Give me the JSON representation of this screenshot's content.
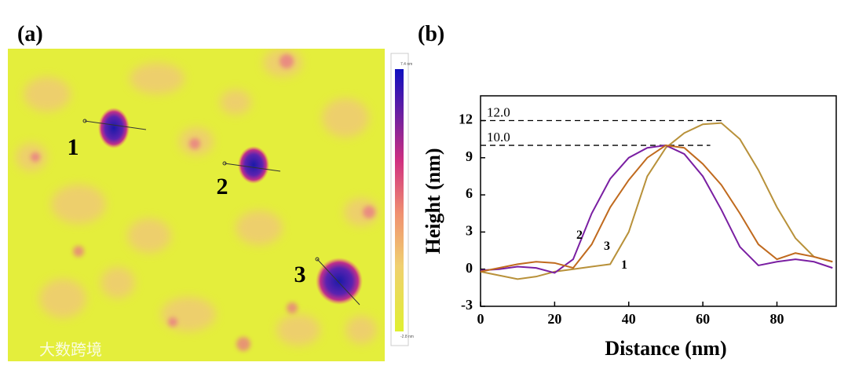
{
  "panel_a": {
    "label": "(a)",
    "particle_labels": [
      "1",
      "2",
      "3"
    ],
    "colorbar_max": "7.4 nm",
    "colorbar_min": "-2.8 nm",
    "watermark": "大数跨境"
  },
  "chart_data": {
    "type": "line",
    "panel_label": "(b)",
    "x_label": "Distance (nm)",
    "y_label": "Height (nm)",
    "x": [
      0,
      5,
      10,
      15,
      20,
      25,
      30,
      35,
      40,
      45,
      50,
      55,
      60,
      65,
      70,
      75,
      80,
      85,
      90,
      95
    ],
    "series": [
      {
        "name": "1",
        "color": "#b8913a",
        "values": [
          -0.2,
          -0.5,
          -0.8,
          -0.6,
          -0.2,
          0.0,
          0.2,
          0.4,
          3.0,
          7.5,
          9.8,
          11.0,
          11.7,
          11.8,
          10.5,
          8.0,
          5.0,
          2.5,
          1.0,
          0.6
        ]
      },
      {
        "name": "2",
        "color": "#7a1fa2",
        "values": [
          -0.1,
          0.0,
          0.2,
          0.1,
          -0.3,
          0.8,
          4.5,
          7.3,
          9.0,
          9.8,
          10.0,
          9.3,
          7.5,
          4.8,
          1.8,
          0.3,
          0.6,
          0.8,
          0.6,
          0.1
        ]
      },
      {
        "name": "3",
        "color": "#c06a1e",
        "values": [
          -0.2,
          0.1,
          0.4,
          0.6,
          0.5,
          0.1,
          2.0,
          5.0,
          7.2,
          9.0,
          10.0,
          9.8,
          8.5,
          6.8,
          4.5,
          2.0,
          0.8,
          1.3,
          1.0,
          0.6
        ]
      }
    ],
    "reference_lines": [
      {
        "value": 12,
        "label": "12.0"
      },
      {
        "value": 10,
        "label": "10.0"
      }
    ],
    "xlim": [
      0,
      96
    ],
    "xticks": [
      0,
      20,
      40,
      60,
      80
    ],
    "ylim": [
      -3,
      14
    ],
    "yticks": [
      -3,
      0,
      3,
      6,
      9,
      12
    ]
  }
}
